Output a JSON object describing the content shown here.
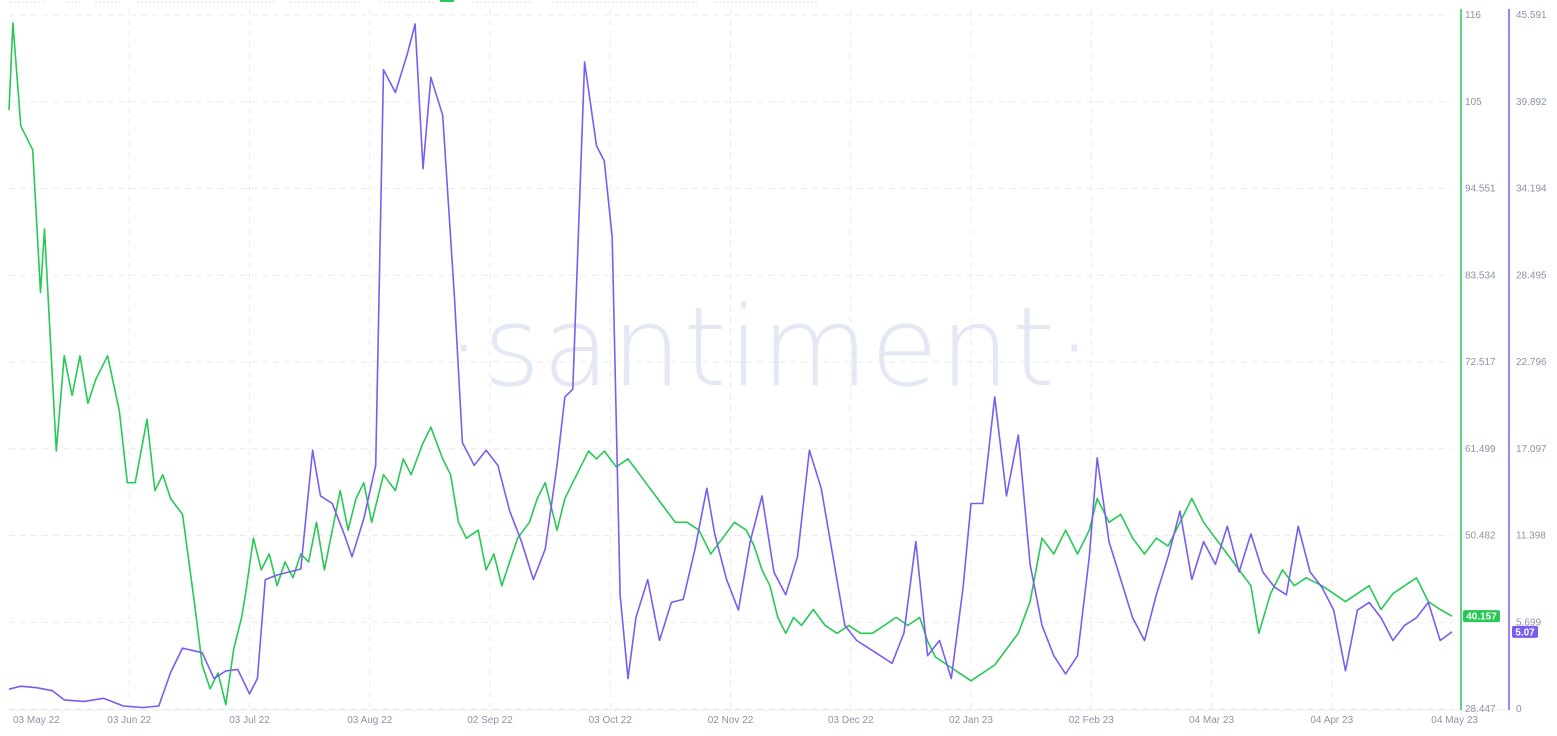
{
  "watermark": "·santiment·",
  "chart_data": {
    "type": "line",
    "x_ticks": [
      "03 May 22",
      "03 Jun 22",
      "03 Jul 22",
      "03 Aug 22",
      "02 Sep 22",
      "03 Oct 22",
      "02 Nov 22",
      "03 Dec 22",
      "02 Jan 23",
      "02 Feb 23",
      "04 Mar 23",
      "04 Apr 23",
      "04 May 23"
    ],
    "x_range": [
      "2022-05-03",
      "2023-05-04"
    ],
    "grid": true,
    "series": [
      {
        "axis": "left",
        "color": "#26c953",
        "current_label": "40.157",
        "ylim": [
          28.447,
          116
        ],
        "y_ticks": [
          "116",
          "105",
          "94.551",
          "83.534",
          "72.517",
          "61.499",
          "50.482",
          "",
          "28.447"
        ],
        "points": [
          [
            "2022-05-03",
            104
          ],
          [
            "2022-05-04",
            115
          ],
          [
            "2022-05-06",
            102
          ],
          [
            "2022-05-09",
            99
          ],
          [
            "2022-05-11",
            81
          ],
          [
            "2022-05-12",
            89
          ],
          [
            "2022-05-15",
            61
          ],
          [
            "2022-05-17",
            73
          ],
          [
            "2022-05-19",
            68
          ],
          [
            "2022-05-21",
            73
          ],
          [
            "2022-05-23",
            67
          ],
          [
            "2022-05-25",
            70
          ],
          [
            "2022-05-28",
            73
          ],
          [
            "2022-05-31",
            66
          ],
          [
            "2022-06-02",
            57
          ],
          [
            "2022-06-04",
            57
          ],
          [
            "2022-06-07",
            65
          ],
          [
            "2022-06-09",
            56
          ],
          [
            "2022-06-11",
            58
          ],
          [
            "2022-06-13",
            55
          ],
          [
            "2022-06-16",
            53
          ],
          [
            "2022-06-19",
            42
          ],
          [
            "2022-06-21",
            34
          ],
          [
            "2022-06-23",
            31
          ],
          [
            "2022-06-25",
            33
          ],
          [
            "2022-06-27",
            29
          ],
          [
            "2022-06-29",
            36
          ],
          [
            "2022-07-01",
            40
          ],
          [
            "2022-07-02",
            43
          ],
          [
            "2022-07-04",
            50
          ],
          [
            "2022-07-06",
            46
          ],
          [
            "2022-07-08",
            48
          ],
          [
            "2022-07-10",
            44
          ],
          [
            "2022-07-12",
            47
          ],
          [
            "2022-07-14",
            45
          ],
          [
            "2022-07-16",
            48
          ],
          [
            "2022-07-18",
            47
          ],
          [
            "2022-07-20",
            52
          ],
          [
            "2022-07-22",
            46
          ],
          [
            "2022-07-24",
            51
          ],
          [
            "2022-07-26",
            56
          ],
          [
            "2022-07-28",
            51
          ],
          [
            "2022-07-30",
            55
          ],
          [
            "2022-08-01",
            57
          ],
          [
            "2022-08-03",
            52
          ],
          [
            "2022-08-06",
            58
          ],
          [
            "2022-08-09",
            56
          ],
          [
            "2022-08-11",
            60
          ],
          [
            "2022-08-13",
            58
          ],
          [
            "2022-08-16",
            62
          ],
          [
            "2022-08-18",
            64
          ],
          [
            "2022-08-21",
            60
          ],
          [
            "2022-08-23",
            58
          ],
          [
            "2022-08-25",
            52
          ],
          [
            "2022-08-27",
            50
          ],
          [
            "2022-08-30",
            51
          ],
          [
            "2022-09-01",
            46
          ],
          [
            "2022-09-03",
            48
          ],
          [
            "2022-09-05",
            44
          ],
          [
            "2022-09-07",
            47
          ],
          [
            "2022-09-09",
            50
          ],
          [
            "2022-09-12",
            52
          ],
          [
            "2022-09-14",
            55
          ],
          [
            "2022-09-16",
            57
          ],
          [
            "2022-09-19",
            51
          ],
          [
            "2022-09-21",
            55
          ],
          [
            "2022-09-24",
            58
          ],
          [
            "2022-09-27",
            61
          ],
          [
            "2022-09-29",
            60
          ],
          [
            "2022-10-01",
            61
          ],
          [
            "2022-10-04",
            59
          ],
          [
            "2022-10-07",
            60
          ],
          [
            "2022-10-10",
            58
          ],
          [
            "2022-10-13",
            56
          ],
          [
            "2022-10-16",
            54
          ],
          [
            "2022-10-19",
            52
          ],
          [
            "2022-10-22",
            52
          ],
          [
            "2022-10-25",
            51
          ],
          [
            "2022-10-28",
            48
          ],
          [
            "2022-10-31",
            50
          ],
          [
            "2022-11-03",
            52
          ],
          [
            "2022-11-06",
            51
          ],
          [
            "2022-11-08",
            49
          ],
          [
            "2022-11-10",
            46
          ],
          [
            "2022-11-12",
            44
          ],
          [
            "2022-11-14",
            40
          ],
          [
            "2022-11-16",
            38
          ],
          [
            "2022-11-18",
            40
          ],
          [
            "2022-11-20",
            39
          ],
          [
            "2022-11-23",
            41
          ],
          [
            "2022-11-26",
            39
          ],
          [
            "2022-11-29",
            38
          ],
          [
            "2022-12-02",
            39
          ],
          [
            "2022-12-05",
            38
          ],
          [
            "2022-12-08",
            38
          ],
          [
            "2022-12-11",
            39
          ],
          [
            "2022-12-14",
            40
          ],
          [
            "2022-12-17",
            39
          ],
          [
            "2022-12-20",
            40
          ],
          [
            "2022-12-22",
            37
          ],
          [
            "2022-12-24",
            35
          ],
          [
            "2022-12-27",
            34
          ],
          [
            "2022-12-30",
            33
          ],
          [
            "2023-01-02",
            32
          ],
          [
            "2023-01-05",
            33
          ],
          [
            "2023-01-08",
            34
          ],
          [
            "2023-01-11",
            36
          ],
          [
            "2023-01-14",
            38
          ],
          [
            "2023-01-17",
            42
          ],
          [
            "2023-01-20",
            50
          ],
          [
            "2023-01-23",
            48
          ],
          [
            "2023-01-26",
            51
          ],
          [
            "2023-01-29",
            48
          ],
          [
            "2023-02-01",
            51
          ],
          [
            "2023-02-03",
            55
          ],
          [
            "2023-02-06",
            52
          ],
          [
            "2023-02-09",
            53
          ],
          [
            "2023-02-12",
            50
          ],
          [
            "2023-02-15",
            48
          ],
          [
            "2023-02-18",
            50
          ],
          [
            "2023-02-21",
            49
          ],
          [
            "2023-02-24",
            52
          ],
          [
            "2023-02-27",
            55
          ],
          [
            "2023-03-02",
            52
          ],
          [
            "2023-03-05",
            50
          ],
          [
            "2023-03-08",
            48
          ],
          [
            "2023-03-11",
            46
          ],
          [
            "2023-03-14",
            44
          ],
          [
            "2023-03-16",
            38
          ],
          [
            "2023-03-19",
            43
          ],
          [
            "2023-03-22",
            46
          ],
          [
            "2023-03-25",
            44
          ],
          [
            "2023-03-28",
            45
          ],
          [
            "2023-04-01",
            44
          ],
          [
            "2023-04-04",
            43
          ],
          [
            "2023-04-07",
            42
          ],
          [
            "2023-04-10",
            43
          ],
          [
            "2023-04-13",
            44
          ],
          [
            "2023-04-16",
            41
          ],
          [
            "2023-04-19",
            43
          ],
          [
            "2023-04-22",
            44
          ],
          [
            "2023-04-25",
            45
          ],
          [
            "2023-04-28",
            42
          ],
          [
            "2023-05-01",
            41
          ],
          [
            "2023-05-04",
            40.157
          ]
        ]
      },
      {
        "axis": "right",
        "color": "#7b5cf0",
        "current_label": "5.07",
        "ylim": [
          0,
          45.591
        ],
        "y_ticks": [
          "45.591",
          "39.892",
          "34.194",
          "28.495",
          "22.796",
          "17.097",
          "11.398",
          "5.699",
          "0"
        ],
        "points": [
          [
            "2022-05-03",
            1.3
          ],
          [
            "2022-05-06",
            1.5
          ],
          [
            "2022-05-10",
            1.4
          ],
          [
            "2022-05-14",
            1.2
          ],
          [
            "2022-05-17",
            0.6
          ],
          [
            "2022-05-22",
            0.5
          ],
          [
            "2022-05-27",
            0.7
          ],
          [
            "2022-06-01",
            0.2
          ],
          [
            "2022-06-06",
            0.1
          ],
          [
            "2022-06-10",
            0.2
          ],
          [
            "2022-06-13",
            2.4
          ],
          [
            "2022-06-16",
            4.0
          ],
          [
            "2022-06-21",
            3.7
          ],
          [
            "2022-06-24",
            2.0
          ],
          [
            "2022-06-27",
            2.5
          ],
          [
            "2022-06-30",
            2.6
          ],
          [
            "2022-07-03",
            1.0
          ],
          [
            "2022-07-05",
            2.0
          ],
          [
            "2022-07-07",
            8.5
          ],
          [
            "2022-07-10",
            8.8
          ],
          [
            "2022-07-13",
            9.0
          ],
          [
            "2022-07-16",
            9.2
          ],
          [
            "2022-07-19",
            17.0
          ],
          [
            "2022-07-21",
            14.0
          ],
          [
            "2022-07-24",
            13.5
          ],
          [
            "2022-07-27",
            11.5
          ],
          [
            "2022-07-29",
            10.0
          ],
          [
            "2022-08-01",
            12.5
          ],
          [
            "2022-08-04",
            16.0
          ],
          [
            "2022-08-06",
            42.0
          ],
          [
            "2022-08-09",
            40.5
          ],
          [
            "2022-08-12",
            43.0
          ],
          [
            "2022-08-14",
            45.0
          ],
          [
            "2022-08-16",
            35.5
          ],
          [
            "2022-08-18",
            41.5
          ],
          [
            "2022-08-21",
            39.0
          ],
          [
            "2022-08-24",
            27.0
          ],
          [
            "2022-08-26",
            17.5
          ],
          [
            "2022-08-29",
            16.0
          ],
          [
            "2022-09-01",
            17.0
          ],
          [
            "2022-09-04",
            16.0
          ],
          [
            "2022-09-07",
            13.0
          ],
          [
            "2022-09-10",
            11.0
          ],
          [
            "2022-09-13",
            8.5
          ],
          [
            "2022-09-16",
            10.5
          ],
          [
            "2022-09-19",
            16.0
          ],
          [
            "2022-09-21",
            20.5
          ],
          [
            "2022-09-23",
            21.0
          ],
          [
            "2022-09-26",
            42.5
          ],
          [
            "2022-09-29",
            37.0
          ],
          [
            "2022-10-01",
            36.0
          ],
          [
            "2022-10-03",
            31.0
          ],
          [
            "2022-10-05",
            7.5
          ],
          [
            "2022-10-07",
            2.0
          ],
          [
            "2022-10-09",
            6.0
          ],
          [
            "2022-10-12",
            8.5
          ],
          [
            "2022-10-15",
            4.5
          ],
          [
            "2022-10-18",
            7.0
          ],
          [
            "2022-10-21",
            7.2
          ],
          [
            "2022-10-24",
            10.5
          ],
          [
            "2022-10-27",
            14.5
          ],
          [
            "2022-10-29",
            11.5
          ],
          [
            "2022-11-01",
            8.5
          ],
          [
            "2022-11-04",
            6.5
          ],
          [
            "2022-11-07",
            11.0
          ],
          [
            "2022-11-10",
            14.0
          ],
          [
            "2022-11-13",
            9.0
          ],
          [
            "2022-11-16",
            7.5
          ],
          [
            "2022-11-19",
            10.0
          ],
          [
            "2022-11-22",
            17.0
          ],
          [
            "2022-11-25",
            14.5
          ],
          [
            "2022-11-28",
            10.0
          ],
          [
            "2022-12-01",
            5.5
          ],
          [
            "2022-12-04",
            4.5
          ],
          [
            "2022-12-07",
            4.0
          ],
          [
            "2022-12-10",
            3.5
          ],
          [
            "2022-12-13",
            3.0
          ],
          [
            "2022-12-16",
            5.0
          ],
          [
            "2022-12-19",
            11.0
          ],
          [
            "2022-12-22",
            3.5
          ],
          [
            "2022-12-25",
            4.5
          ],
          [
            "2022-12-28",
            2.0
          ],
          [
            "2022-12-31",
            8.0
          ],
          [
            "2023-01-02",
            13.5
          ],
          [
            "2023-01-05",
            13.5
          ],
          [
            "2023-01-08",
            20.5
          ],
          [
            "2023-01-11",
            14.0
          ],
          [
            "2023-01-14",
            18.0
          ],
          [
            "2023-01-17",
            9.5
          ],
          [
            "2023-01-20",
            5.5
          ],
          [
            "2023-01-23",
            3.5
          ],
          [
            "2023-01-26",
            2.3
          ],
          [
            "2023-01-29",
            3.5
          ],
          [
            "2023-02-01",
            10.0
          ],
          [
            "2023-02-03",
            16.5
          ],
          [
            "2023-02-06",
            11.0
          ],
          [
            "2023-02-09",
            8.5
          ],
          [
            "2023-02-12",
            6.0
          ],
          [
            "2023-02-15",
            4.5
          ],
          [
            "2023-02-18",
            7.5
          ],
          [
            "2023-02-21",
            10.0
          ],
          [
            "2023-02-24",
            13.0
          ],
          [
            "2023-02-27",
            8.5
          ],
          [
            "2023-03-02",
            11.0
          ],
          [
            "2023-03-05",
            9.5
          ],
          [
            "2023-03-08",
            12.0
          ],
          [
            "2023-03-11",
            9.0
          ],
          [
            "2023-03-14",
            11.5
          ],
          [
            "2023-03-17",
            9.0
          ],
          [
            "2023-03-20",
            8.0
          ],
          [
            "2023-03-23",
            7.5
          ],
          [
            "2023-03-26",
            12.0
          ],
          [
            "2023-03-29",
            9.0
          ],
          [
            "2023-04-01",
            8.0
          ],
          [
            "2023-04-04",
            6.5
          ],
          [
            "2023-04-07",
            2.5
          ],
          [
            "2023-04-10",
            6.5
          ],
          [
            "2023-04-13",
            7.0
          ],
          [
            "2023-04-16",
            6.0
          ],
          [
            "2023-04-19",
            4.5
          ],
          [
            "2023-04-22",
            5.5
          ],
          [
            "2023-04-25",
            6.0
          ],
          [
            "2023-04-28",
            7.0
          ],
          [
            "2023-05-01",
            4.5
          ],
          [
            "2023-05-04",
            5.07
          ]
        ]
      }
    ]
  }
}
